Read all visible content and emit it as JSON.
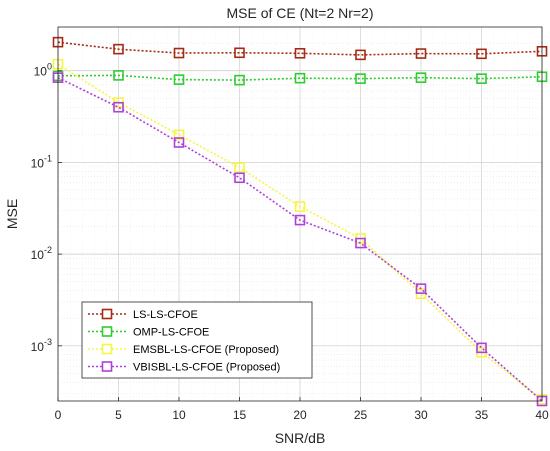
{
  "chart_data": {
    "type": "line",
    "title": "MSE of CE (Nt=2 Nr=2)",
    "xlabel": "SNR/dB",
    "ylabel": "MSE",
    "xscale": "linear",
    "yscale": "log",
    "xlim": [
      0,
      40
    ],
    "ylim": [
      0.00025,
      3
    ],
    "xticks": [
      0,
      5,
      10,
      15,
      20,
      25,
      30,
      35,
      40
    ],
    "xtick_labels": [
      "0",
      "5",
      "10",
      "15",
      "20",
      "25",
      "30",
      "35",
      "40"
    ],
    "yticks": [
      {
        "value": 0.001,
        "base": "10",
        "exp": "-3"
      },
      {
        "value": 0.01,
        "base": "10",
        "exp": "-2"
      },
      {
        "value": 0.1,
        "base": "10",
        "exp": "-1"
      },
      {
        "value": 1,
        "base": "10",
        "exp": "0"
      }
    ],
    "grid": true,
    "minor_grid": true,
    "legend_position": "bottom-left",
    "x": [
      0,
      5,
      10,
      15,
      20,
      25,
      30,
      35,
      40
    ],
    "series": [
      {
        "name": "LS-LS-CFOE",
        "color": "#a52a14",
        "values": [
          2.05,
          1.72,
          1.56,
          1.57,
          1.55,
          1.49,
          1.54,
          1.53,
          1.63
        ]
      },
      {
        "name": "OMP-LS-CFOE",
        "color": "#2ecc2e",
        "values": [
          0.88,
          0.89,
          0.8,
          0.79,
          0.83,
          0.82,
          0.84,
          0.82,
          0.86
        ]
      },
      {
        "name": "EMSBL-LS-CFOE (Proposed)",
        "color": "#f5f542",
        "values": [
          1.18,
          0.45,
          0.2,
          0.088,
          0.033,
          0.0148,
          0.0037,
          0.00085,
          0.00026
        ]
      },
      {
        "name": "VBISBL-LS-CFOE (Proposed)",
        "color": "#b040d8",
        "values": [
          0.84,
          0.4,
          0.165,
          0.068,
          0.0235,
          0.0132,
          0.0042,
          0.00095,
          0.00025
        ]
      }
    ]
  }
}
